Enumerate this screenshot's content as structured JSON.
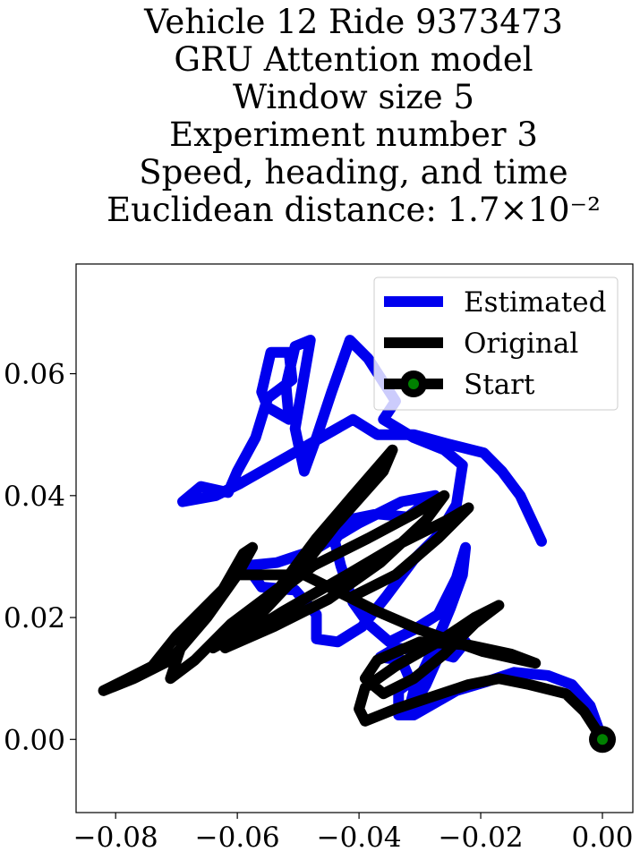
{
  "chart_data": {
    "type": "line",
    "title": [
      "Vehicle 12 Ride 9373473",
      "GRU Attention model",
      "Window size 5",
      "Experiment number 3",
      "Speed, heading, and time",
      "Euclidean distance: 1.7×10⁻²"
    ],
    "xlim": [
      -0.0865,
      0.005
    ],
    "ylim": [
      -0.012,
      0.078
    ],
    "xticks": [
      {
        "value": -0.08,
        "label": "−0.08"
      },
      {
        "value": -0.06,
        "label": "−0.06"
      },
      {
        "value": -0.04,
        "label": "−0.04"
      },
      {
        "value": -0.02,
        "label": "−0.02"
      },
      {
        "value": 0,
        "label": "0.00"
      }
    ],
    "yticks": [
      {
        "value": 0,
        "label": "0.00"
      },
      {
        "value": 0.02,
        "label": "0.02"
      },
      {
        "value": 0.04,
        "label": "0.04"
      },
      {
        "value": 0.06,
        "label": "0.06"
      }
    ],
    "legend": "upper right",
    "series": [
      {
        "name": "Estimated",
        "color": "#0000ee",
        "x": [
          0,
          -0.002,
          -0.005,
          -0.009,
          -0.0145,
          -0.019,
          -0.024,
          -0.0275,
          -0.031,
          -0.0335,
          -0.0335,
          -0.0315,
          -0.033,
          -0.0365,
          -0.034,
          -0.028,
          -0.0245,
          -0.0225,
          -0.0245,
          -0.027,
          -0.029,
          -0.032,
          -0.031,
          -0.0275,
          -0.025,
          -0.023,
          -0.0225,
          -0.024,
          -0.027,
          -0.031,
          -0.035,
          -0.0385,
          -0.041,
          -0.043,
          -0.044,
          -0.042,
          -0.037,
          -0.032,
          -0.0275,
          -0.033,
          -0.04,
          -0.0475,
          -0.0535,
          -0.0585,
          -0.056,
          -0.0505,
          -0.047,
          -0.047,
          -0.0435,
          -0.0395,
          -0.0355,
          -0.031,
          -0.027,
          -0.024,
          -0.023,
          -0.026,
          -0.031,
          -0.036,
          -0.034,
          -0.0385,
          -0.0415,
          -0.0445,
          -0.047,
          -0.049,
          -0.0505,
          -0.048,
          -0.0505,
          -0.052,
          -0.0515,
          -0.055,
          -0.056,
          -0.0545,
          -0.0515,
          -0.051,
          -0.055,
          -0.057,
          -0.06,
          -0.0615,
          -0.066,
          -0.069,
          -0.0635,
          -0.0595,
          -0.041,
          -0.037,
          -0.031,
          -0.0255,
          -0.0195,
          -0.0165,
          -0.0135,
          -0.01
        ],
        "values": [
          0,
          0.0055,
          0.009,
          0.0105,
          0.011,
          0.0095,
          0.008,
          0.006,
          0.004,
          0.004,
          0.008,
          0.0095,
          0.013,
          0.0135,
          0.015,
          0.0145,
          0.0135,
          0.016,
          0.017,
          0.0135,
          0.009,
          0.004,
          0.008,
          0.0155,
          0.0215,
          0.027,
          0.0315,
          0.0265,
          0.0205,
          0.018,
          0.016,
          0.019,
          0.0225,
          0.0285,
          0.0325,
          0.036,
          0.037,
          0.0365,
          0.04,
          0.039,
          0.0355,
          0.031,
          0.029,
          0.0285,
          0.025,
          0.0245,
          0.0205,
          0.0165,
          0.016,
          0.0185,
          0.0235,
          0.0295,
          0.0335,
          0.0385,
          0.045,
          0.0475,
          0.0495,
          0.0525,
          0.0555,
          0.0625,
          0.0655,
          0.057,
          0.0495,
          0.044,
          0.051,
          0.0655,
          0.0645,
          0.058,
          0.0525,
          0.0545,
          0.057,
          0.0635,
          0.0635,
          0.059,
          0.056,
          0.0495,
          0.044,
          0.0405,
          0.0415,
          0.039,
          0.04,
          0.042,
          0.0525,
          0.05,
          0.05,
          0.0485,
          0.047,
          0.044,
          0.04,
          0.0325
        ]
      },
      {
        "name": "Original",
        "color": "#000000",
        "x": [
          0,
          -0.003,
          -0.006,
          -0.012,
          -0.017,
          -0.022,
          -0.028,
          -0.034,
          -0.039,
          -0.04,
          -0.039,
          -0.034,
          -0.027,
          -0.021,
          -0.017,
          -0.021,
          -0.026,
          -0.031,
          -0.036,
          -0.039,
          -0.037,
          -0.03,
          -0.022,
          -0.015,
          -0.011,
          -0.0196,
          -0.03,
          -0.037,
          -0.043,
          -0.049,
          -0.055,
          -0.06,
          -0.064,
          -0.07,
          -0.074,
          -0.078,
          -0.082,
          -0.077,
          -0.071,
          -0.065,
          -0.06,
          -0.0575,
          -0.059,
          -0.063,
          -0.069,
          -0.071,
          -0.067,
          -0.061,
          -0.053,
          -0.047,
          -0.041,
          -0.0345,
          -0.036,
          -0.044,
          -0.051,
          -0.0585,
          -0.064,
          -0.056,
          -0.0475,
          -0.0385,
          -0.031,
          -0.026,
          -0.029,
          -0.0365,
          -0.045,
          -0.054,
          -0.062,
          -0.0525,
          -0.042,
          -0.0335,
          -0.0255,
          -0.022,
          -0.027,
          -0.034,
          -0.041
        ],
        "values": [
          0,
          0.0046,
          0.0075,
          0.009,
          0.01,
          0.009,
          0.007,
          0.005,
          0.003,
          0.005,
          0.0085,
          0.012,
          0.016,
          0.02,
          0.022,
          0.019,
          0.014,
          0.01,
          0.0075,
          0.01,
          0.013,
          0.016,
          0.0155,
          0.014,
          0.0125,
          0.0144,
          0.018,
          0.021,
          0.024,
          0.027,
          0.027,
          0.027,
          0.023,
          0.017,
          0.012,
          0.01,
          0.008,
          0.01,
          0.013,
          0.02,
          0.027,
          0.0315,
          0.0305,
          0.0235,
          0.016,
          0.01,
          0.013,
          0.019,
          0.025,
          0.033,
          0.04,
          0.0475,
          0.044,
          0.035,
          0.026,
          0.018,
          0.015,
          0.022,
          0.0285,
          0.033,
          0.037,
          0.04,
          0.036,
          0.029,
          0.023,
          0.0185,
          0.015,
          0.021,
          0.027,
          0.032,
          0.036,
          0.038,
          0.033,
          0.027,
          0.0235
        ]
      },
      {
        "name": "Start",
        "color": "#000000",
        "marker_color": "#008000",
        "x": [
          0
        ],
        "values": [
          0
        ]
      }
    ]
  }
}
